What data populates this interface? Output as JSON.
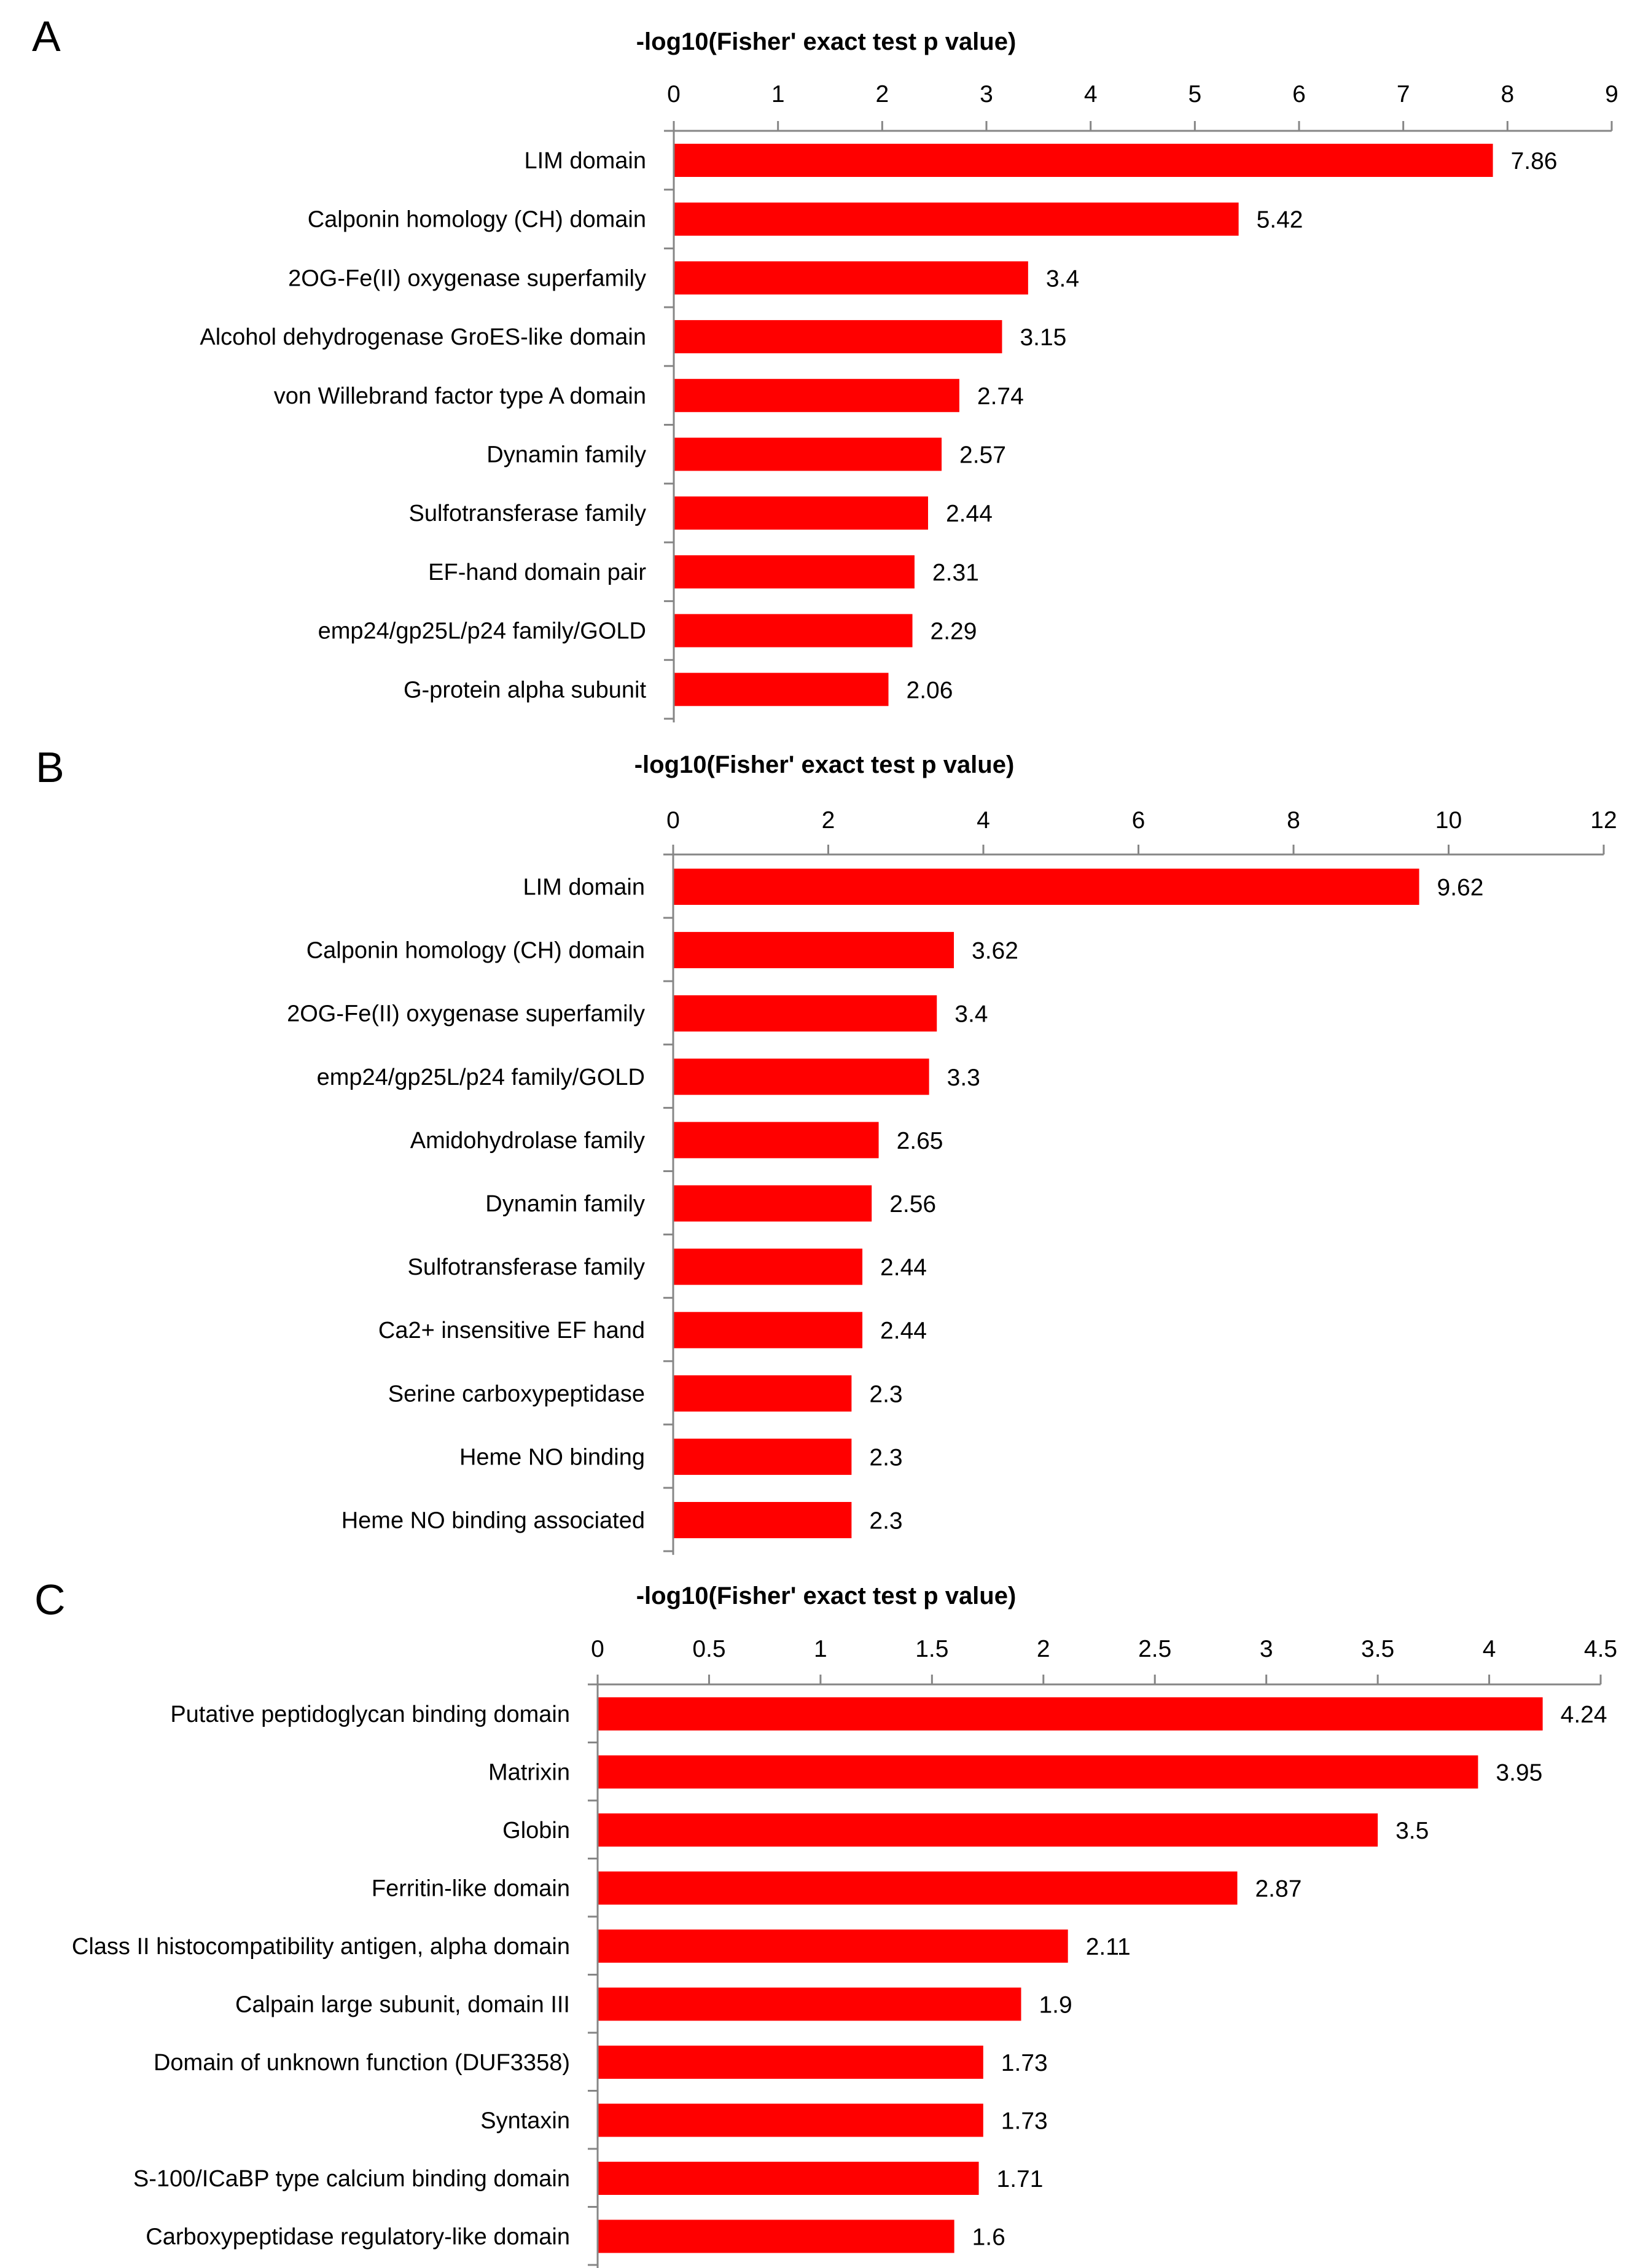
{
  "figure": {
    "panels": [
      "A",
      "B",
      "C"
    ]
  },
  "colors": {
    "bar": "#ff0000",
    "axis": "#868686",
    "text": "#000000"
  },
  "chart_data": [
    {
      "panel": "A",
      "type": "bar",
      "orientation": "horizontal",
      "title": "-log10(Fisher' exact test p value)",
      "xlabel": "-log10(Fisher' exact test p value)",
      "ylabel": "",
      "xlim": [
        0,
        9
      ],
      "xticks": [
        "0",
        "1",
        "2",
        "3",
        "4",
        "5",
        "6",
        "7",
        "8",
        "9"
      ],
      "axis_position": "top",
      "grid": false,
      "legend": "none",
      "categories": [
        "LIM domain",
        "Calponin homology (CH) domain",
        "2OG-Fe(II) oxygenase superfamily",
        "Alcohol dehydrogenase GroES-like domain",
        "von Willebrand factor type A domain",
        "Dynamin family",
        "Sulfotransferase family",
        "EF-hand domain pair",
        "emp24/gp25L/p24 family/GOLD",
        "G-protein alpha subunit"
      ],
      "values": [
        7.86,
        5.42,
        3.4,
        3.15,
        2.74,
        2.57,
        2.44,
        2.31,
        2.29,
        2.06
      ],
      "value_labels": [
        "7.86",
        "5.42",
        "3.4",
        "3.15",
        "2.74",
        "2.57",
        "2.44",
        "2.31",
        "2.29",
        "2.06"
      ]
    },
    {
      "panel": "B",
      "type": "bar",
      "orientation": "horizontal",
      "title": "-log10(Fisher' exact test p value)",
      "xlabel": "-log10(Fisher' exact test p value)",
      "ylabel": "",
      "xlim": [
        0,
        12
      ],
      "xticks": [
        "0",
        "2",
        "4",
        "6",
        "8",
        "10",
        "12"
      ],
      "axis_position": "top",
      "grid": false,
      "legend": "none",
      "categories": [
        "LIM domain",
        "Calponin homology (CH) domain",
        "2OG-Fe(II) oxygenase superfamily",
        "emp24/gp25L/p24 family/GOLD",
        "Amidohydrolase family",
        "Dynamin family",
        "Sulfotransferase family",
        "Ca2+ insensitive EF hand",
        "Serine carboxypeptidase",
        "Heme NO binding",
        "Heme NO binding associated"
      ],
      "values": [
        9.62,
        3.62,
        3.4,
        3.3,
        2.65,
        2.56,
        2.44,
        2.44,
        2.3,
        2.3,
        2.3
      ],
      "value_labels": [
        "9.62",
        "3.62",
        "3.4",
        "3.3",
        "2.65",
        "2.56",
        "2.44",
        "2.44",
        "2.3",
        "2.3",
        "2.3"
      ]
    },
    {
      "panel": "C",
      "type": "bar",
      "orientation": "horizontal",
      "title": "-log10(Fisher' exact test p value)",
      "xlabel": "-log10(Fisher' exact test p value)",
      "ylabel": "",
      "xlim": [
        0,
        4.5
      ],
      "xticks": [
        "0",
        "0.5",
        "1",
        "1.5",
        "2",
        "2.5",
        "3",
        "3.5",
        "4",
        "4.5"
      ],
      "axis_position": "top",
      "grid": false,
      "legend": "none",
      "categories": [
        "Putative peptidoglycan binding domain",
        "Matrixin",
        "Globin",
        "Ferritin-like domain",
        "Class II histocompatibility antigen, alpha domain",
        "Calpain large subunit, domain III",
        "Domain of unknown function (DUF3358)",
        "Syntaxin",
        "S-100/ICaBP type calcium binding domain",
        "Carboxypeptidase regulatory-like domain"
      ],
      "values": [
        4.24,
        3.95,
        3.5,
        2.87,
        2.11,
        1.9,
        1.73,
        1.73,
        1.71,
        1.6
      ],
      "value_labels": [
        "4.24",
        "3.95",
        "3.5",
        "2.87",
        "2.11",
        "1.9",
        "1.73",
        "1.73",
        "1.71",
        "1.6"
      ]
    }
  ]
}
